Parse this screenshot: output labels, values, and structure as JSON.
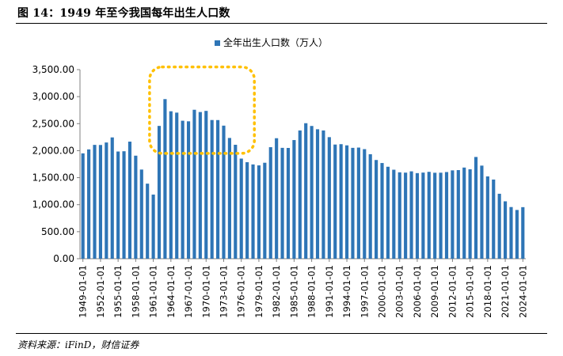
{
  "figure": {
    "title": "图 14：1949 年至今我国每年出生人口数",
    "source": "资料来源：iFinD，财信证券"
  },
  "colors": {
    "bar": "#2E75B6",
    "highlight": "#FFC000",
    "axis": "#808080"
  },
  "chart_data": {
    "type": "bar",
    "title": "",
    "xlabel": "",
    "ylabel": "",
    "ylim": [
      0,
      3500
    ],
    "y_ticks": [
      "0.00",
      "500.00",
      "1,000.00",
      "1,500.00",
      "2,000.00",
      "2,500.00",
      "3,000.00",
      "3,500.00"
    ],
    "grid": false,
    "legend": {
      "position": "top-center",
      "entries": [
        "全年出生人口数（万人）"
      ]
    },
    "annotations": [
      {
        "type": "dashed-rounded-rectangle",
        "color": "#FFC000",
        "x_range": [
          "1961-01-01",
          "1978-01-01"
        ],
        "y_range": [
          1950,
          3550
        ]
      }
    ],
    "x_tick_labels": [
      "1949-01-01",
      "1952-01-01",
      "1955-01-01",
      "1958-01-01",
      "1961-01-01",
      "1964-01-01",
      "1967-01-01",
      "1970-01-01",
      "1973-01-01",
      "1976-01-01",
      "1979-01-01",
      "1982-01-01",
      "1985-01-01",
      "1988-01-01",
      "1991-01-01",
      "1994-01-01",
      "1997-01-01",
      "2000-01-01",
      "2003-01-01",
      "2006-01-01",
      "2009-01-01",
      "2012-01-01",
      "2015-01-01",
      "2018-01-01",
      "2021-01-01",
      "2024-01-01"
    ],
    "categories": [
      "1949-01-01",
      "1950-01-01",
      "1951-01-01",
      "1952-01-01",
      "1953-01-01",
      "1954-01-01",
      "1955-01-01",
      "1956-01-01",
      "1957-01-01",
      "1958-01-01",
      "1959-01-01",
      "1960-01-01",
      "1961-01-01",
      "1962-01-01",
      "1963-01-01",
      "1964-01-01",
      "1965-01-01",
      "1966-01-01",
      "1967-01-01",
      "1968-01-01",
      "1969-01-01",
      "1970-01-01",
      "1971-01-01",
      "1972-01-01",
      "1973-01-01",
      "1974-01-01",
      "1975-01-01",
      "1976-01-01",
      "1977-01-01",
      "1978-01-01",
      "1979-01-01",
      "1980-01-01",
      "1981-01-01",
      "1982-01-01",
      "1983-01-01",
      "1984-01-01",
      "1985-01-01",
      "1986-01-01",
      "1987-01-01",
      "1988-01-01",
      "1989-01-01",
      "1990-01-01",
      "1991-01-01",
      "1992-01-01",
      "1993-01-01",
      "1994-01-01",
      "1995-01-01",
      "1996-01-01",
      "1997-01-01",
      "1998-01-01",
      "1999-01-01",
      "2000-01-01",
      "2001-01-01",
      "2002-01-01",
      "2003-01-01",
      "2004-01-01",
      "2005-01-01",
      "2006-01-01",
      "2007-01-01",
      "2008-01-01",
      "2009-01-01",
      "2010-01-01",
      "2011-01-01",
      "2012-01-01",
      "2013-01-01",
      "2014-01-01",
      "2015-01-01",
      "2016-01-01",
      "2017-01-01",
      "2018-01-01",
      "2019-01-01",
      "2020-01-01",
      "2021-01-01",
      "2022-01-01",
      "2023-01-01",
      "2024-01-01"
    ],
    "series": [
      {
        "name": "全年出生人口数（万人）",
        "values": [
          1950,
          2023,
          2107,
          2105,
          2151,
          2245,
          1984,
          1989,
          2167,
          1907,
          1650,
          1389,
          1187,
          2458,
          2954,
          2729,
          2704,
          2554,
          2543,
          2757,
          2715,
          2736,
          2567,
          2566,
          2463,
          2235,
          2109,
          1853,
          1786,
          1745,
          1727,
          1776,
          2064,
          2230,
          2052,
          2050,
          2196,
          2374,
          2508,
          2457,
          2396,
          2374,
          2250,
          2113,
          2120,
          2098,
          2052,
          2057,
          2028,
          1934,
          1827,
          1771,
          1702,
          1647,
          1599,
          1593,
          1617,
          1584,
          1594,
          1608,
          1591,
          1592,
          1604,
          1635,
          1640,
          1687,
          1655,
          1883,
          1723,
          1523,
          1465,
          1202,
          1062,
          956,
          902,
          954
        ]
      }
    ]
  }
}
